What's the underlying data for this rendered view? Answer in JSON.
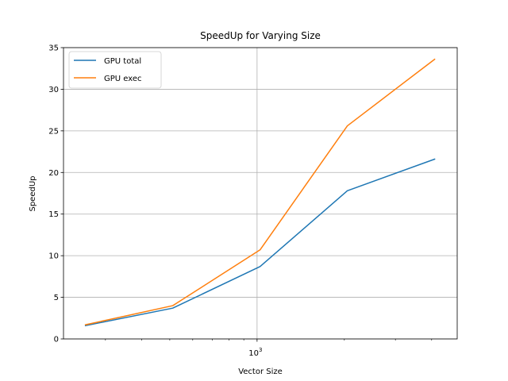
{
  "chart_data": {
    "type": "line",
    "title": "SpeedUp for Varying Size",
    "xlabel": "Vector Size",
    "ylabel": "SpeedUp",
    "x_scale": "log",
    "xlim": [
      215,
      4900
    ],
    "ylim": [
      0,
      35
    ],
    "yticks": [
      0,
      5,
      10,
      15,
      20,
      25,
      30,
      35
    ],
    "xticks_major": [
      {
        "value": 1000,
        "base": "10",
        "exp": "3"
      }
    ],
    "xticks_minor": [
      300,
      400,
      500,
      600,
      700,
      800,
      900,
      2000,
      3000,
      4000
    ],
    "grid": true,
    "legend_position": "top-left",
    "x": [
      256,
      512,
      1024,
      2048,
      4096
    ],
    "series": [
      {
        "name": "GPU total",
        "color": "#1f77b4",
        "values": [
          1.6,
          3.7,
          8.7,
          17.8,
          21.6
        ]
      },
      {
        "name": "GPU exec",
        "color": "#ff7f0e",
        "values": [
          1.7,
          4.0,
          10.7,
          25.6,
          33.6
        ]
      }
    ]
  }
}
